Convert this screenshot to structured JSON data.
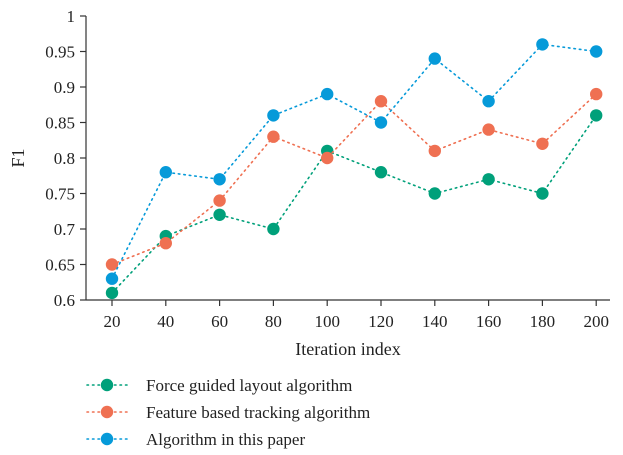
{
  "chart_data": {
    "type": "line",
    "x": [
      20,
      40,
      60,
      80,
      100,
      120,
      140,
      160,
      180,
      200
    ],
    "xticks": [
      "20",
      "40",
      "60",
      "80",
      "100",
      "120",
      "140",
      "160",
      "180",
      "200"
    ],
    "yticks": [
      "0.6",
      "0.65",
      "0.7",
      "0.75",
      "0.8",
      "0.85",
      "0.9",
      "0.95",
      "1"
    ],
    "xlabel": "Iteration index",
    "ylabel": "F1",
    "ylim": [
      0.6,
      1.0
    ],
    "grid": false,
    "legend_position": "bottom",
    "series": [
      {
        "name": "Force guided layout algorithm",
        "color": "#00a07a",
        "values": [
          0.61,
          0.69,
          0.72,
          0.7,
          0.81,
          0.78,
          0.75,
          0.77,
          0.75,
          0.86
        ]
      },
      {
        "name": "Feature based tracking algorithm",
        "color": "#ef7052",
        "values": [
          0.65,
          0.68,
          0.74,
          0.83,
          0.8,
          0.88,
          0.81,
          0.84,
          0.82,
          0.89
        ]
      },
      {
        "name": "Algorithm in this paper",
        "color": "#069ad9",
        "values": [
          0.63,
          0.78,
          0.77,
          0.86,
          0.89,
          0.85,
          0.94,
          0.88,
          0.96,
          0.95
        ]
      }
    ]
  }
}
